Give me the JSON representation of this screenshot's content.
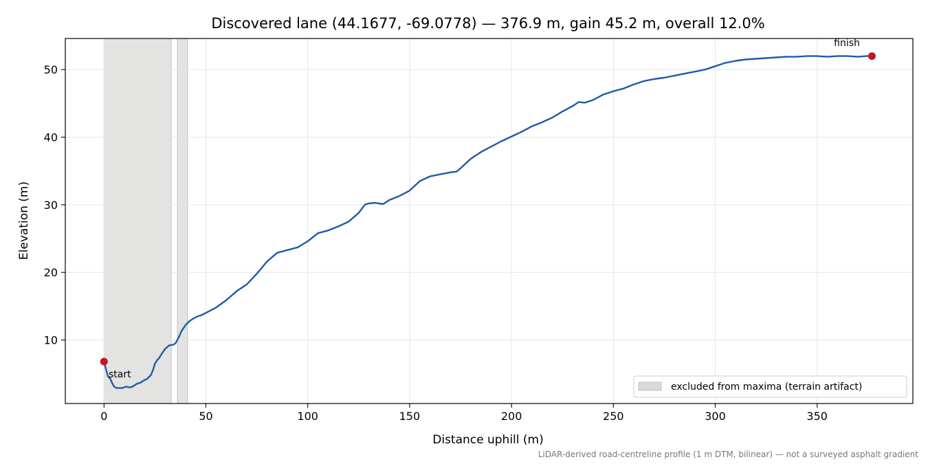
{
  "chart_data": {
    "type": "line",
    "title": "Discovered lane (44.1677, -69.0778) — 376.9 m, gain 45.2 m, overall 12.0%",
    "xlabel": "Distance uphill (m)",
    "ylabel": "Elevation (m)",
    "xlim": [
      -19,
      397
    ],
    "ylim": [
      0.6,
      54.6
    ],
    "xticks": [
      0,
      50,
      100,
      150,
      200,
      250,
      300,
      350
    ],
    "yticks": [
      10,
      20,
      30,
      40,
      50
    ],
    "grid": true,
    "legend_position": "bottom-right",
    "footnote": "LiDAR-derived road-centreline profile (1 m DTM, bilinear) — not a surveyed asphalt gradient",
    "line_color": "#1f5aa8",
    "marker_color": "#c0182a",
    "excluded_color": "#d9d9d7",
    "excluded_regions": [
      [
        0,
        33
      ],
      [
        36,
        41
      ]
    ],
    "excluded_label": "excluded from maxima (terrain artifact)",
    "start": {
      "x": 0,
      "y": 6.8,
      "label": "start"
    },
    "finish": {
      "x": 376.9,
      "y": 52.0,
      "label": "finish"
    },
    "series": [
      {
        "x": [
          0,
          1,
          2,
          3,
          4,
          5,
          6,
          7,
          8,
          9,
          10,
          11,
          12,
          13,
          14,
          15,
          16,
          17,
          18,
          19,
          20,
          21,
          22,
          23,
          24,
          25,
          26,
          27,
          28,
          30,
          32,
          34,
          35,
          36,
          37,
          38,
          40,
          42,
          44,
          46,
          48,
          50,
          55,
          60,
          65,
          70,
          75,
          80,
          85,
          90,
          95,
          100,
          105,
          110,
          115,
          120,
          125,
          128,
          130,
          133,
          135,
          137,
          140,
          145,
          150,
          155,
          160,
          165,
          170,
          173,
          175,
          180,
          185,
          190,
          195,
          200,
          205,
          210,
          215,
          220,
          225,
          230,
          233,
          236,
          240,
          245,
          250,
          255,
          260,
          265,
          270,
          275,
          280,
          285,
          290,
          295,
          300,
          305,
          310,
          315,
          320,
          325,
          330,
          335,
          340,
          345,
          350,
          355,
          360,
          365,
          370,
          374,
          376.9
        ],
        "y": [
          6.8,
          5.6,
          4.6,
          4.3,
          3.6,
          3.1,
          2.9,
          2.9,
          2.9,
          2.9,
          3.0,
          3.1,
          3.0,
          3.0,
          3.1,
          3.3,
          3.5,
          3.6,
          3.7,
          3.9,
          4.1,
          4.2,
          4.5,
          4.8,
          5.5,
          6.5,
          7.0,
          7.3,
          7.8,
          8.7,
          9.2,
          9.3,
          9.5,
          10.0,
          10.6,
          11.3,
          12.2,
          12.8,
          13.2,
          13.5,
          13.7,
          14.0,
          14.8,
          15.9,
          17.2,
          18.2,
          19.8,
          21.6,
          22.9,
          23.3,
          23.7,
          24.6,
          25.8,
          26.2,
          26.8,
          27.5,
          28.8,
          30.0,
          30.2,
          30.3,
          30.2,
          30.1,
          30.7,
          31.3,
          32.1,
          33.5,
          34.2,
          34.5,
          34.8,
          34.9,
          35.4,
          36.8,
          37.8,
          38.6,
          39.4,
          40.1,
          40.8,
          41.6,
          42.2,
          42.9,
          43.8,
          44.6,
          45.2,
          45.1,
          45.5,
          46.3,
          46.8,
          47.2,
          47.8,
          48.3,
          48.6,
          48.8,
          49.1,
          49.4,
          49.7,
          50.0,
          50.5,
          51.0,
          51.3,
          51.5,
          51.6,
          51.7,
          51.8,
          51.9,
          51.9,
          52.0,
          52.0,
          51.9,
          52.0,
          52.0,
          51.9,
          52.0,
          52.0
        ]
      }
    ]
  }
}
